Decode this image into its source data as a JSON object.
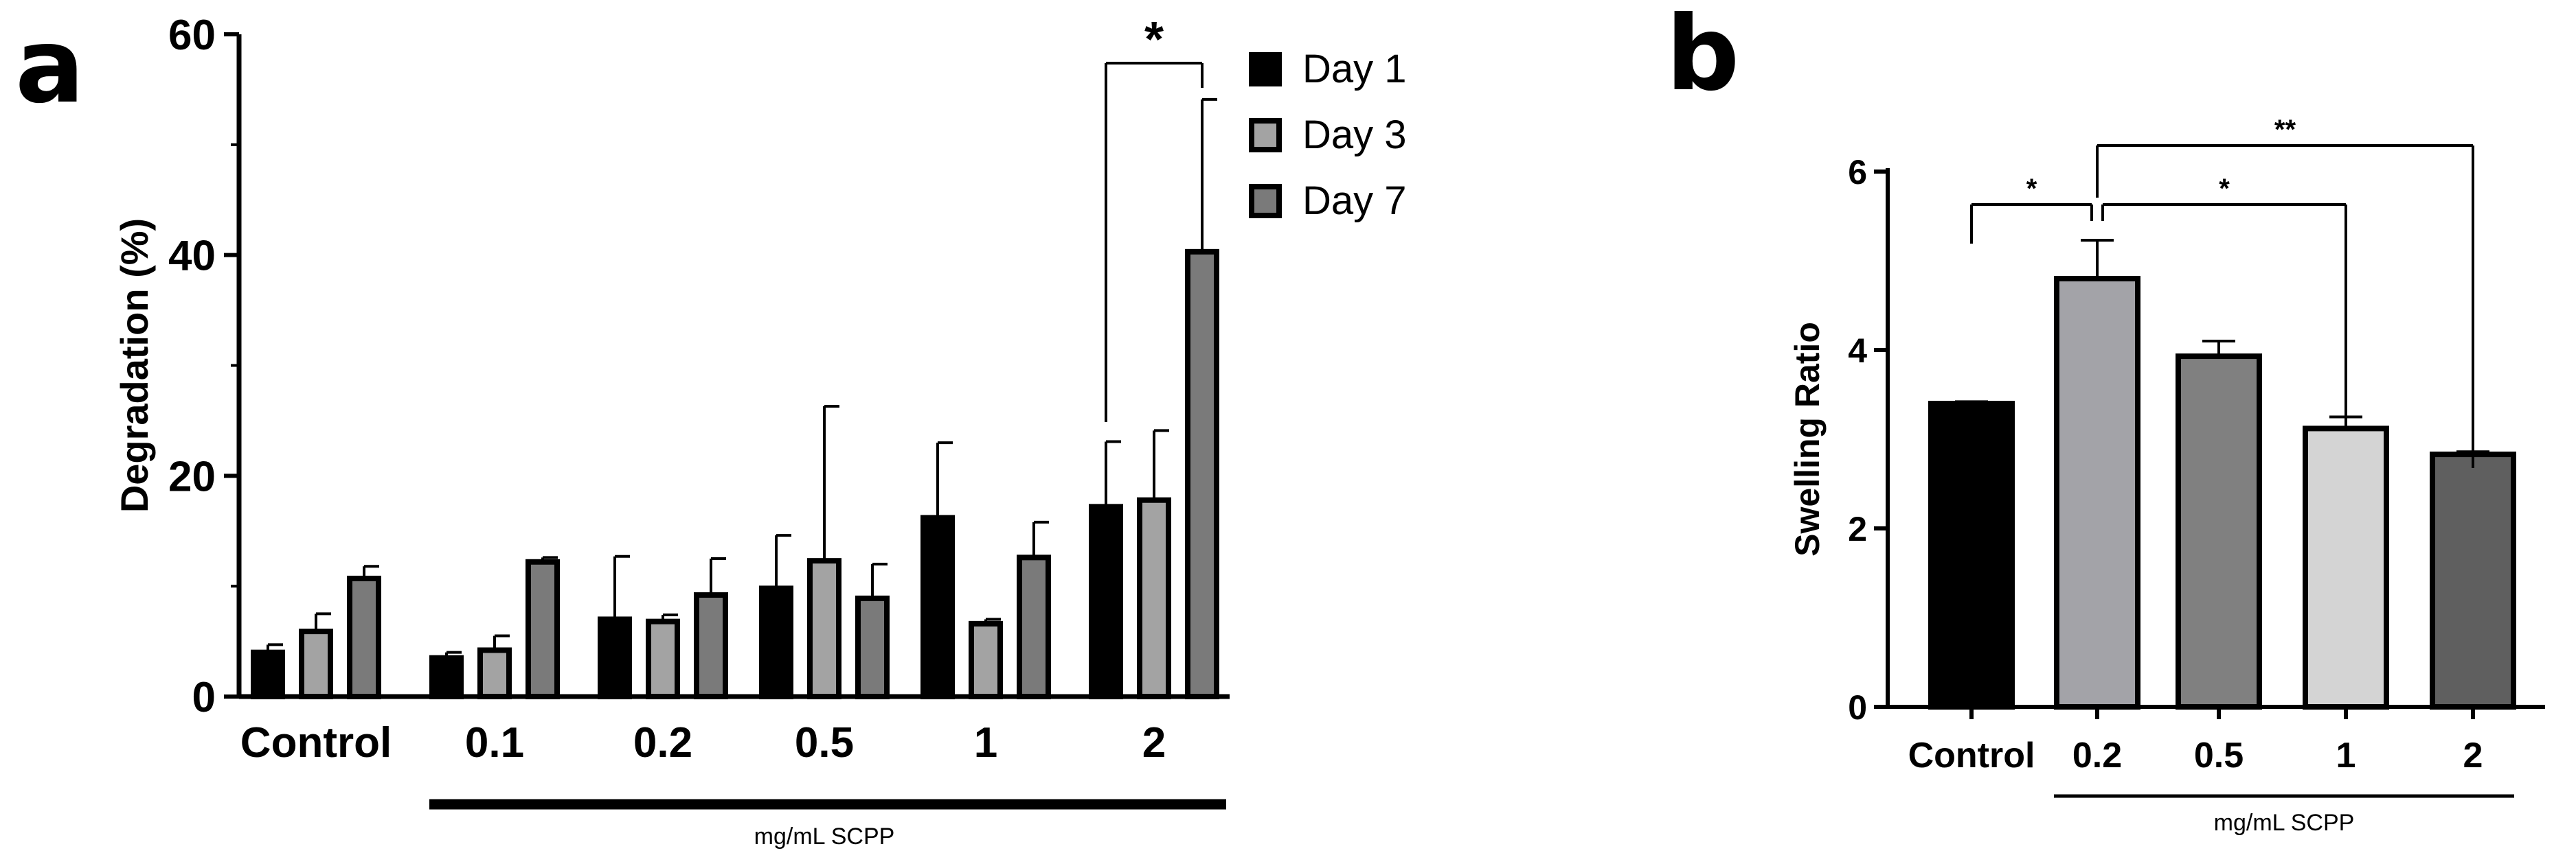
{
  "panels": {
    "a": {
      "letter": "a"
    },
    "b": {
      "letter": "b"
    }
  },
  "chart_data": [
    {
      "panel": "a",
      "type": "bar",
      "title": "",
      "xlabel": "",
      "ylabel": "Degradation (%)",
      "ylim": [
        0,
        60
      ],
      "yticks": [
        0,
        20,
        40,
        60
      ],
      "grid": false,
      "legend_position": "top-right",
      "categories": [
        "Control",
        "0.1",
        "0.2",
        "0.5",
        "1",
        "2"
      ],
      "series": [
        {
          "name": "Day 1",
          "color": "#000000",
          "values": [
            4.0,
            3.5,
            7.0,
            9.8,
            16.2,
            17.2
          ],
          "errors": [
            0.7,
            0.5,
            5.7,
            4.8,
            6.8,
            5.9
          ]
        },
        {
          "name": "Day 3",
          "color": "#a3a3a3",
          "values": [
            5.9,
            4.2,
            6.8,
            12.3,
            6.6,
            17.8
          ],
          "errors": [
            1.6,
            1.3,
            0.6,
            14.0,
            0.4,
            6.3
          ]
        },
        {
          "name": "Day 7",
          "color": "#7a7a7a",
          "values": [
            10.7,
            12.2,
            9.2,
            8.9,
            12.6,
            40.3
          ],
          "errors": [
            1.1,
            0.4,
            3.3,
            3.1,
            3.2,
            13.8
          ]
        }
      ],
      "bracket_label": "mg/mL SCPP",
      "significance": [
        {
          "category": "2",
          "from": "Day 1",
          "to": "Day 7",
          "label": "*"
        }
      ]
    },
    {
      "panel": "b",
      "type": "bar",
      "title": "",
      "xlabel": "",
      "ylabel": "Swelling Ratio",
      "ylim": [
        0,
        6
      ],
      "yticks": [
        0,
        2,
        4,
        6
      ],
      "grid": false,
      "categories": [
        "Control",
        "0.2",
        "0.5",
        "1",
        "2"
      ],
      "values": [
        3.4,
        4.8,
        3.93,
        3.12,
        2.83
      ],
      "errors": [
        0.02,
        0.43,
        0.17,
        0.13,
        0.03
      ],
      "colors": [
        "#000000",
        "#a3a3a8",
        "#808080",
        "#d4d4d4",
        "#5f5f5f"
      ],
      "bracket_label": "mg/mL SCPP",
      "significance": [
        {
          "from": "Control",
          "to": "0.2",
          "label": "*"
        },
        {
          "from": "0.2",
          "to": "1",
          "label": "*"
        },
        {
          "from": "0.2",
          "to": "2",
          "label": "**"
        }
      ]
    }
  ]
}
